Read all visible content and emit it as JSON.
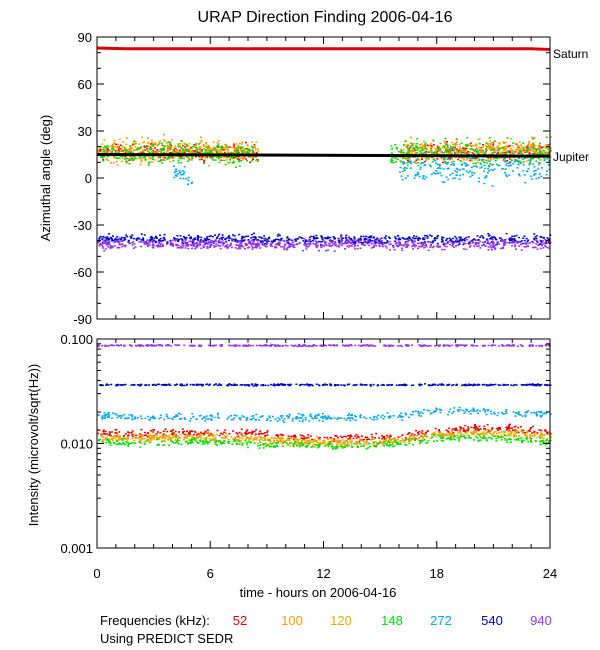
{
  "chart_data": [
    {
      "type": "scatter",
      "title": "URAP Direction Finding  2006-04-16",
      "ylabel": "Azimuthal angle (deg)",
      "xlim": [
        0,
        24
      ],
      "ylim": [
        -90,
        90
      ],
      "yticks": [
        90,
        60,
        30,
        0,
        -30,
        -60,
        -90
      ],
      "grid": false,
      "reference_lines": [
        {
          "name": "Saturn",
          "color": "#e00000",
          "x": [
            0,
            1.5,
            23,
            24
          ],
          "y": [
            83,
            82.5,
            82.5,
            82
          ]
        },
        {
          "name": "Jupiter",
          "color": "#000000",
          "x": [
            0,
            24
          ],
          "y": [
            15,
            14
          ]
        }
      ],
      "series": [
        {
          "freq": "52",
          "color": "#e00000",
          "clusters": [
            {
              "x": [
                0,
                8.5
              ],
              "y": 17,
              "spread": 5
            },
            {
              "x": [
                16,
                24
              ],
              "y": 17,
              "spread": 5
            }
          ]
        },
        {
          "freq": "100",
          "color": "#ff9900",
          "clusters": [
            {
              "x": [
                0,
                8.5
              ],
              "y": 18,
              "spread": 7
            },
            {
              "x": [
                16,
                24
              ],
              "y": 18,
              "spread": 7
            }
          ]
        },
        {
          "freq": "120",
          "color": "#e0b000",
          "clusters": [
            {
              "x": [
                0,
                8.5
              ],
              "y": 17,
              "spread": 6
            },
            {
              "x": [
                16,
                24
              ],
              "y": 17,
              "spread": 6
            }
          ]
        },
        {
          "freq": "148",
          "color": "#00dd00",
          "clusters": [
            {
              "x": [
                0,
                8.5
              ],
              "y": 16,
              "spread": 7
            },
            {
              "x": [
                15.5,
                24
              ],
              "y": 16,
              "spread": 8
            }
          ]
        },
        {
          "freq": "272",
          "color": "#00a8e8",
          "clusters": [
            {
              "x": [
                4,
                5
              ],
              "y": 2,
              "spread": 6
            },
            {
              "x": [
                16,
                24
              ],
              "y": 8,
              "spread": 9
            }
          ]
        },
        {
          "freq": "540",
          "color": "#0000cc",
          "clusters": [
            {
              "x": [
                0,
                24
              ],
              "y": -39,
              "spread": 3
            }
          ]
        },
        {
          "freq": "940",
          "color": "#9933ee",
          "clusters": [
            {
              "x": [
                0,
                24
              ],
              "y": -42,
              "spread": 3
            }
          ]
        }
      ],
      "right_labels": [
        "Saturn",
        "Jupiter"
      ]
    },
    {
      "type": "scatter",
      "ylabel": "Intensity (microvolt/sqrt(Hz))",
      "xlabel": "time - hours on 2006-04-16",
      "xlim": [
        0,
        24
      ],
      "xticks": [
        0,
        6,
        12,
        18,
        24
      ],
      "ylim": [
        0.001,
        0.1
      ],
      "yscale": "log",
      "yticks": [
        "0.100",
        "0.010",
        "0.001"
      ],
      "grid": false,
      "series": [
        {
          "freq": "52",
          "color": "#e00000",
          "x": [
            0,
            2,
            4,
            6,
            8,
            10,
            12,
            14,
            16,
            18,
            20,
            22,
            24
          ],
          "y": [
            0.013,
            0.0125,
            0.013,
            0.0125,
            0.013,
            0.012,
            0.0115,
            0.0115,
            0.012,
            0.0135,
            0.014,
            0.014,
            0.013
          ]
        },
        {
          "freq": "100",
          "color": "#ff9900",
          "x": [
            0,
            2,
            4,
            6,
            8,
            10,
            12,
            14,
            16,
            18,
            20,
            22,
            24
          ],
          "y": [
            0.012,
            0.0115,
            0.012,
            0.012,
            0.0115,
            0.011,
            0.0105,
            0.0105,
            0.011,
            0.0125,
            0.013,
            0.013,
            0.012
          ]
        },
        {
          "freq": "120",
          "color": "#e0b000",
          "x": [
            0,
            2,
            4,
            6,
            8,
            10,
            12,
            14,
            16,
            18,
            20,
            22,
            24
          ],
          "y": [
            0.0115,
            0.011,
            0.0115,
            0.0115,
            0.011,
            0.0105,
            0.0102,
            0.0102,
            0.0108,
            0.012,
            0.0125,
            0.0125,
            0.0115
          ]
        },
        {
          "freq": "148",
          "color": "#00dd00",
          "x": [
            0,
            2,
            4,
            6,
            8,
            10,
            12,
            14,
            16,
            18,
            20,
            22,
            24
          ],
          "y": [
            0.0105,
            0.0102,
            0.0105,
            0.0105,
            0.0102,
            0.0098,
            0.0096,
            0.0096,
            0.0102,
            0.0112,
            0.0115,
            0.0112,
            0.0105
          ]
        },
        {
          "freq": "272",
          "color": "#00a8e8",
          "x": [
            0,
            2,
            4,
            6,
            8,
            10,
            12,
            14,
            16,
            18,
            20,
            22,
            24
          ],
          "y": [
            0.019,
            0.018,
            0.018,
            0.018,
            0.018,
            0.018,
            0.018,
            0.018,
            0.0185,
            0.021,
            0.021,
            0.02,
            0.019
          ]
        },
        {
          "freq": "540",
          "color": "#0000cc",
          "x": [
            0,
            24
          ],
          "y": [
            0.037,
            0.037
          ]
        },
        {
          "freq": "940",
          "color": "#9933ee",
          "x": [
            0,
            24
          ],
          "y": [
            0.088,
            0.088
          ]
        }
      ]
    }
  ],
  "legend": {
    "label": "Frequencies (kHz):",
    "items": [
      {
        "text": "52",
        "color": "#e00000"
      },
      {
        "text": "100",
        "color": "#ff9900"
      },
      {
        "text": "120",
        "color": "#e0b000"
      },
      {
        "text": "148",
        "color": "#00dd00"
      },
      {
        "text": "272",
        "color": "#00a8e8"
      },
      {
        "text": "540",
        "color": "#0000cc"
      },
      {
        "text": "940",
        "color": "#9933ee"
      }
    ],
    "note": "Using PREDICT SEDR"
  }
}
